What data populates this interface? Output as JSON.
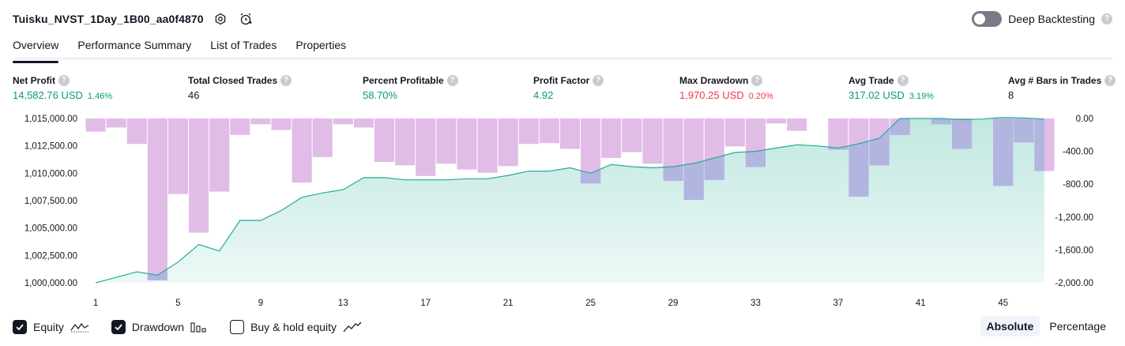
{
  "header": {
    "title": "Tuisku_NVST_1Day_1B00_aa0f4870",
    "deep_backtesting_label": "Deep Backtesting",
    "help_glyph": "?"
  },
  "tabs": [
    {
      "label": "Overview",
      "active": true
    },
    {
      "label": "Performance Summary",
      "active": false
    },
    {
      "label": "List of Trades",
      "active": false
    },
    {
      "label": "Properties",
      "active": false
    }
  ],
  "metrics": [
    {
      "label": "Net Profit",
      "value": "14,582.76 USD",
      "pct": "1.46%",
      "color": "#089981"
    },
    {
      "label": "Total Closed Trades",
      "value": "46",
      "pct": "",
      "color": "#131722"
    },
    {
      "label": "Percent Profitable",
      "value": "58.70%",
      "pct": "",
      "color": "#089981"
    },
    {
      "label": "Profit Factor",
      "value": "4.92",
      "pct": "",
      "color": "#089981"
    },
    {
      "label": "Max Drawdown",
      "value": "1,970.25 USD",
      "pct": "0.20%",
      "color": "#f23645"
    },
    {
      "label": "Avg Trade",
      "value": "317.02 USD",
      "pct": "3.19%",
      "color": "#089981"
    },
    {
      "label": "Avg # Bars in Trades",
      "value": "8",
      "pct": "",
      "color": "#131722"
    }
  ],
  "chart_data": {
    "type": "area",
    "x": [
      1,
      2,
      3,
      4,
      5,
      6,
      7,
      8,
      9,
      10,
      11,
      12,
      13,
      14,
      15,
      16,
      17,
      18,
      19,
      20,
      21,
      22,
      23,
      24,
      25,
      26,
      27,
      28,
      29,
      30,
      31,
      32,
      33,
      34,
      35,
      36,
      37,
      38,
      39,
      40,
      41,
      42,
      43,
      44,
      45,
      46,
      47
    ],
    "x_tick_labels": [
      "1",
      "5",
      "9",
      "13",
      "17",
      "21",
      "25",
      "29",
      "33",
      "37",
      "41",
      "45"
    ],
    "left_axis": {
      "range": [
        1000000,
        1015000
      ],
      "tick_labels": [
        "1,015,000.00",
        "1,012,500.00",
        "1,010,000.00",
        "1,007,500.00",
        "1,005,000.00",
        "1,002,500.00",
        "1,000,000.00"
      ]
    },
    "right_axis": {
      "range": [
        -2000,
        0
      ],
      "tick_labels": [
        "0.00",
        "-400.00",
        "-800.00",
        "-1,200.00",
        "-1,600.00",
        "-2,000.00"
      ]
    },
    "series": [
      {
        "name": "Equity",
        "axis": "left",
        "color": "#22ab94",
        "values": [
          1000000,
          1000500,
          1001000,
          1000700,
          1001900,
          1003500,
          1002900,
          1005700,
          1005700,
          1006600,
          1007800,
          1008200,
          1008500,
          1009600,
          1009600,
          1009400,
          1009400,
          1009400,
          1009500,
          1009500,
          1009800,
          1010200,
          1010200,
          1010500,
          1010000,
          1010800,
          1010600,
          1010500,
          1010600,
          1010900,
          1011400,
          1011900,
          1012000,
          1012300,
          1012600,
          1012500,
          1012300,
          1012700,
          1013200,
          1015000,
          1015000,
          1015000,
          1014900,
          1014950,
          1015100,
          1015050,
          1014950
        ]
      },
      {
        "name": "Drawdown",
        "axis": "right",
        "color": "#ce93d8",
        "overlap_color": "#b2b5e0",
        "values": [
          -160,
          -110,
          -310,
          -1970,
          -920,
          -1390,
          -890,
          -200,
          -70,
          -140,
          -780,
          -470,
          -70,
          -110,
          -530,
          -570,
          -700,
          -550,
          -620,
          -660,
          -580,
          -310,
          -300,
          -370,
          -790,
          -480,
          -410,
          -550,
          -760,
          -990,
          -750,
          -340,
          -590,
          -60,
          -150,
          0,
          -380,
          -950,
          -570,
          -200,
          0,
          -70,
          -370,
          0,
          -820,
          -290,
          -640
        ]
      }
    ],
    "grid": false
  },
  "legend": {
    "items": [
      {
        "label": "Equity",
        "checked": true,
        "icon": "equity-icon"
      },
      {
        "label": "Drawdown",
        "checked": true,
        "icon": "drawdown-icon"
      },
      {
        "label": "Buy & hold equity",
        "checked": false,
        "icon": "buy-hold-icon"
      }
    ]
  },
  "modes": [
    {
      "label": "Absolute",
      "active": true
    },
    {
      "label": "Percentage",
      "active": false
    }
  ]
}
